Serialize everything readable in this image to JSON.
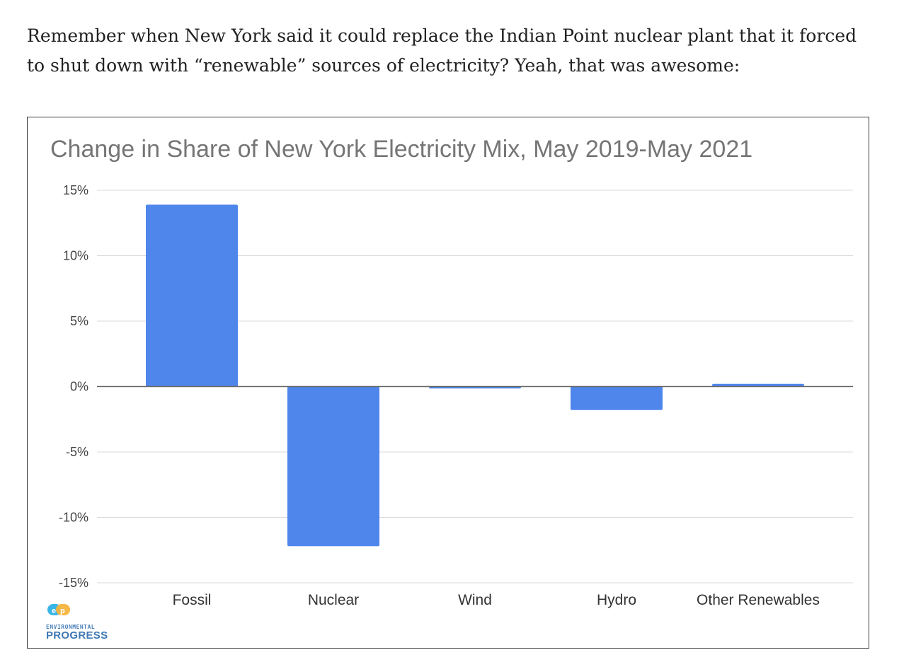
{
  "article": {
    "intro_text": "Remember when New York said it could replace the Indian Point nuclear plant that it forced to shut down with “renewable” sources of electricity? Yeah, that was awesome:"
  },
  "logo": {
    "small_text": "ENVIRONMENTAL",
    "big_text": "PROGRESS",
    "icon": "ep-logo-icon"
  },
  "colors": {
    "bar": "#4f86ec",
    "grid": "#d9d9d9",
    "zero_line": "#666666"
  },
  "chart_data": {
    "type": "bar",
    "title": "Change in Share of New York Electricity Mix, May 2019-May 2021",
    "xlabel": "",
    "ylabel": "",
    "categories": [
      "Fossil",
      "Nuclear",
      "Wind",
      "Hydro",
      "Other Renewables"
    ],
    "values": [
      13.9,
      -12.2,
      -0.15,
      -1.8,
      0.2
    ],
    "ylim": [
      -15,
      15
    ],
    "yticks": [
      15,
      10,
      5,
      0,
      -5,
      -10,
      -15
    ],
    "ytick_labels": [
      "15%",
      "10%",
      "5%",
      "0%",
      "-5%",
      "-10%",
      "-15%"
    ],
    "grid": true,
    "legend": false
  }
}
